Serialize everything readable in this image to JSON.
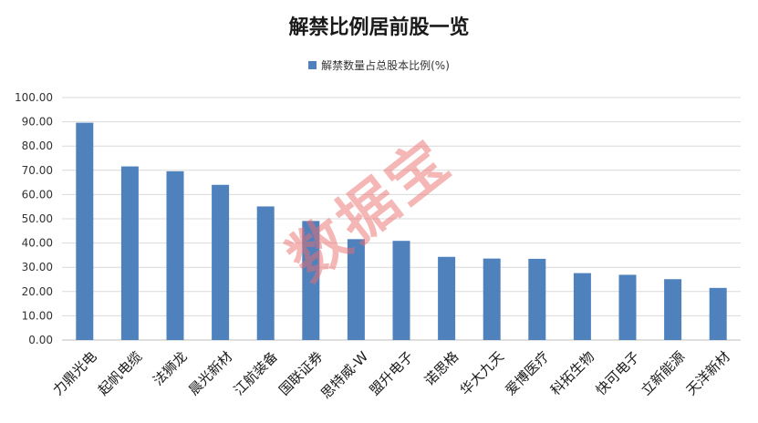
{
  "chart_data": {
    "type": "bar",
    "title": "解禁比例居前股一览",
    "series": [
      {
        "name": "解禁数量占总股本比例(%)",
        "color": "#4f81bd",
        "values": [
          89.6,
          71.6,
          69.6,
          64.0,
          55.1,
          49.1,
          41.6,
          40.9,
          34.3,
          33.6,
          33.5,
          27.6,
          26.9,
          25.1,
          21.5
        ]
      }
    ],
    "categories": [
      "力鼎光电",
      "起帆电缆",
      "法狮龙",
      "晨光新材",
      "江航装备",
      "国联证券",
      "思特威-W",
      "盟升电子",
      "诺思格",
      "华大九天",
      "爱博医疗",
      "科拓生物",
      "快可电子",
      "立新能源",
      "天洋新材"
    ],
    "ylim": [
      0,
      100
    ],
    "ytick_step": 10,
    "ytick_labels": [
      "0.00",
      "10.00",
      "20.00",
      "30.00",
      "40.00",
      "50.00",
      "60.00",
      "70.00",
      "80.00",
      "90.00",
      "100.00"
    ],
    "grid": true,
    "legend_position": "top-center"
  },
  "watermark": "数据宝"
}
